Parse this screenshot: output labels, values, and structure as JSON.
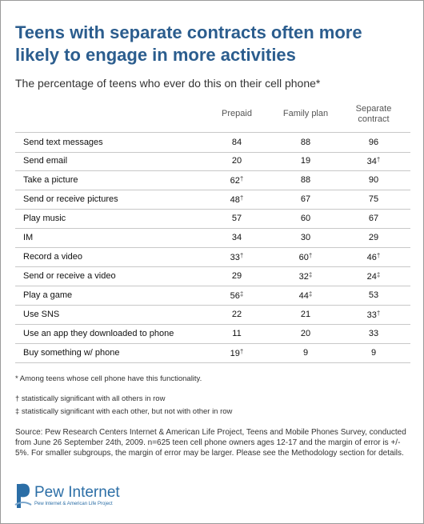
{
  "header": {
    "title": "Teens with separate contracts often more likely to engage in more activities",
    "subtitle": "The percentage of teens who ever do this on their cell phone*"
  },
  "table": {
    "columns": [
      "Prepaid",
      "Family plan",
      "Separate contract"
    ],
    "rows": [
      {
        "label": "Send text messages",
        "values": [
          84,
          88,
          96
        ],
        "marks": [
          null,
          null,
          null
        ]
      },
      {
        "label": "Send email",
        "values": [
          20,
          19,
          34
        ],
        "marks": [
          null,
          null,
          "†"
        ]
      },
      {
        "label": "Take a picture",
        "values": [
          62,
          88,
          90
        ],
        "marks": [
          "†",
          null,
          null
        ]
      },
      {
        "label": "Send or receive pictures",
        "values": [
          48,
          67,
          75
        ],
        "marks": [
          "†",
          null,
          null
        ]
      },
      {
        "label": "Play music",
        "values": [
          57,
          60,
          67
        ],
        "marks": [
          null,
          null,
          null
        ]
      },
      {
        "label": "IM",
        "values": [
          34,
          30,
          29
        ],
        "marks": [
          null,
          null,
          null
        ]
      },
      {
        "label": "Record a video",
        "values": [
          33,
          60,
          46
        ],
        "marks": [
          "†",
          "†",
          "†"
        ]
      },
      {
        "label": "Send or receive a video",
        "values": [
          29,
          32,
          24
        ],
        "marks": [
          null,
          "‡",
          "‡"
        ]
      },
      {
        "label": "Play a game",
        "values": [
          56,
          44,
          53
        ],
        "marks": [
          "‡",
          "‡",
          null
        ]
      },
      {
        "label": "Use SNS",
        "values": [
          22,
          21,
          33
        ],
        "marks": [
          null,
          null,
          "†"
        ]
      },
      {
        "label": "Use an app they downloaded to phone",
        "values": [
          11,
          20,
          33
        ],
        "marks": [
          null,
          null,
          null
        ]
      },
      {
        "label": "Buy something w/ phone",
        "values": [
          19,
          9,
          9
        ],
        "marks": [
          "†",
          null,
          null
        ]
      }
    ]
  },
  "notes": [
    "* Among teens whose cell phone have this functionality.",
    "† statistically significant with all others in row",
    "‡ statistically significant with each other, but not with other in row"
  ],
  "source": "Source: Pew Research Centers Internet & American Life Project, Teens and Mobile Phones Survey, conducted from June 26  September 24th, 2009. n=625 teen cell phone owners ages 12-17 and the margin of error is +/- 5%. For smaller subgroups, the margin of error may be larger. Please see the Methodology section for details.",
  "logo": {
    "name": "Pew Internet",
    "tagline": "Pew Internet & American Life Project"
  }
}
